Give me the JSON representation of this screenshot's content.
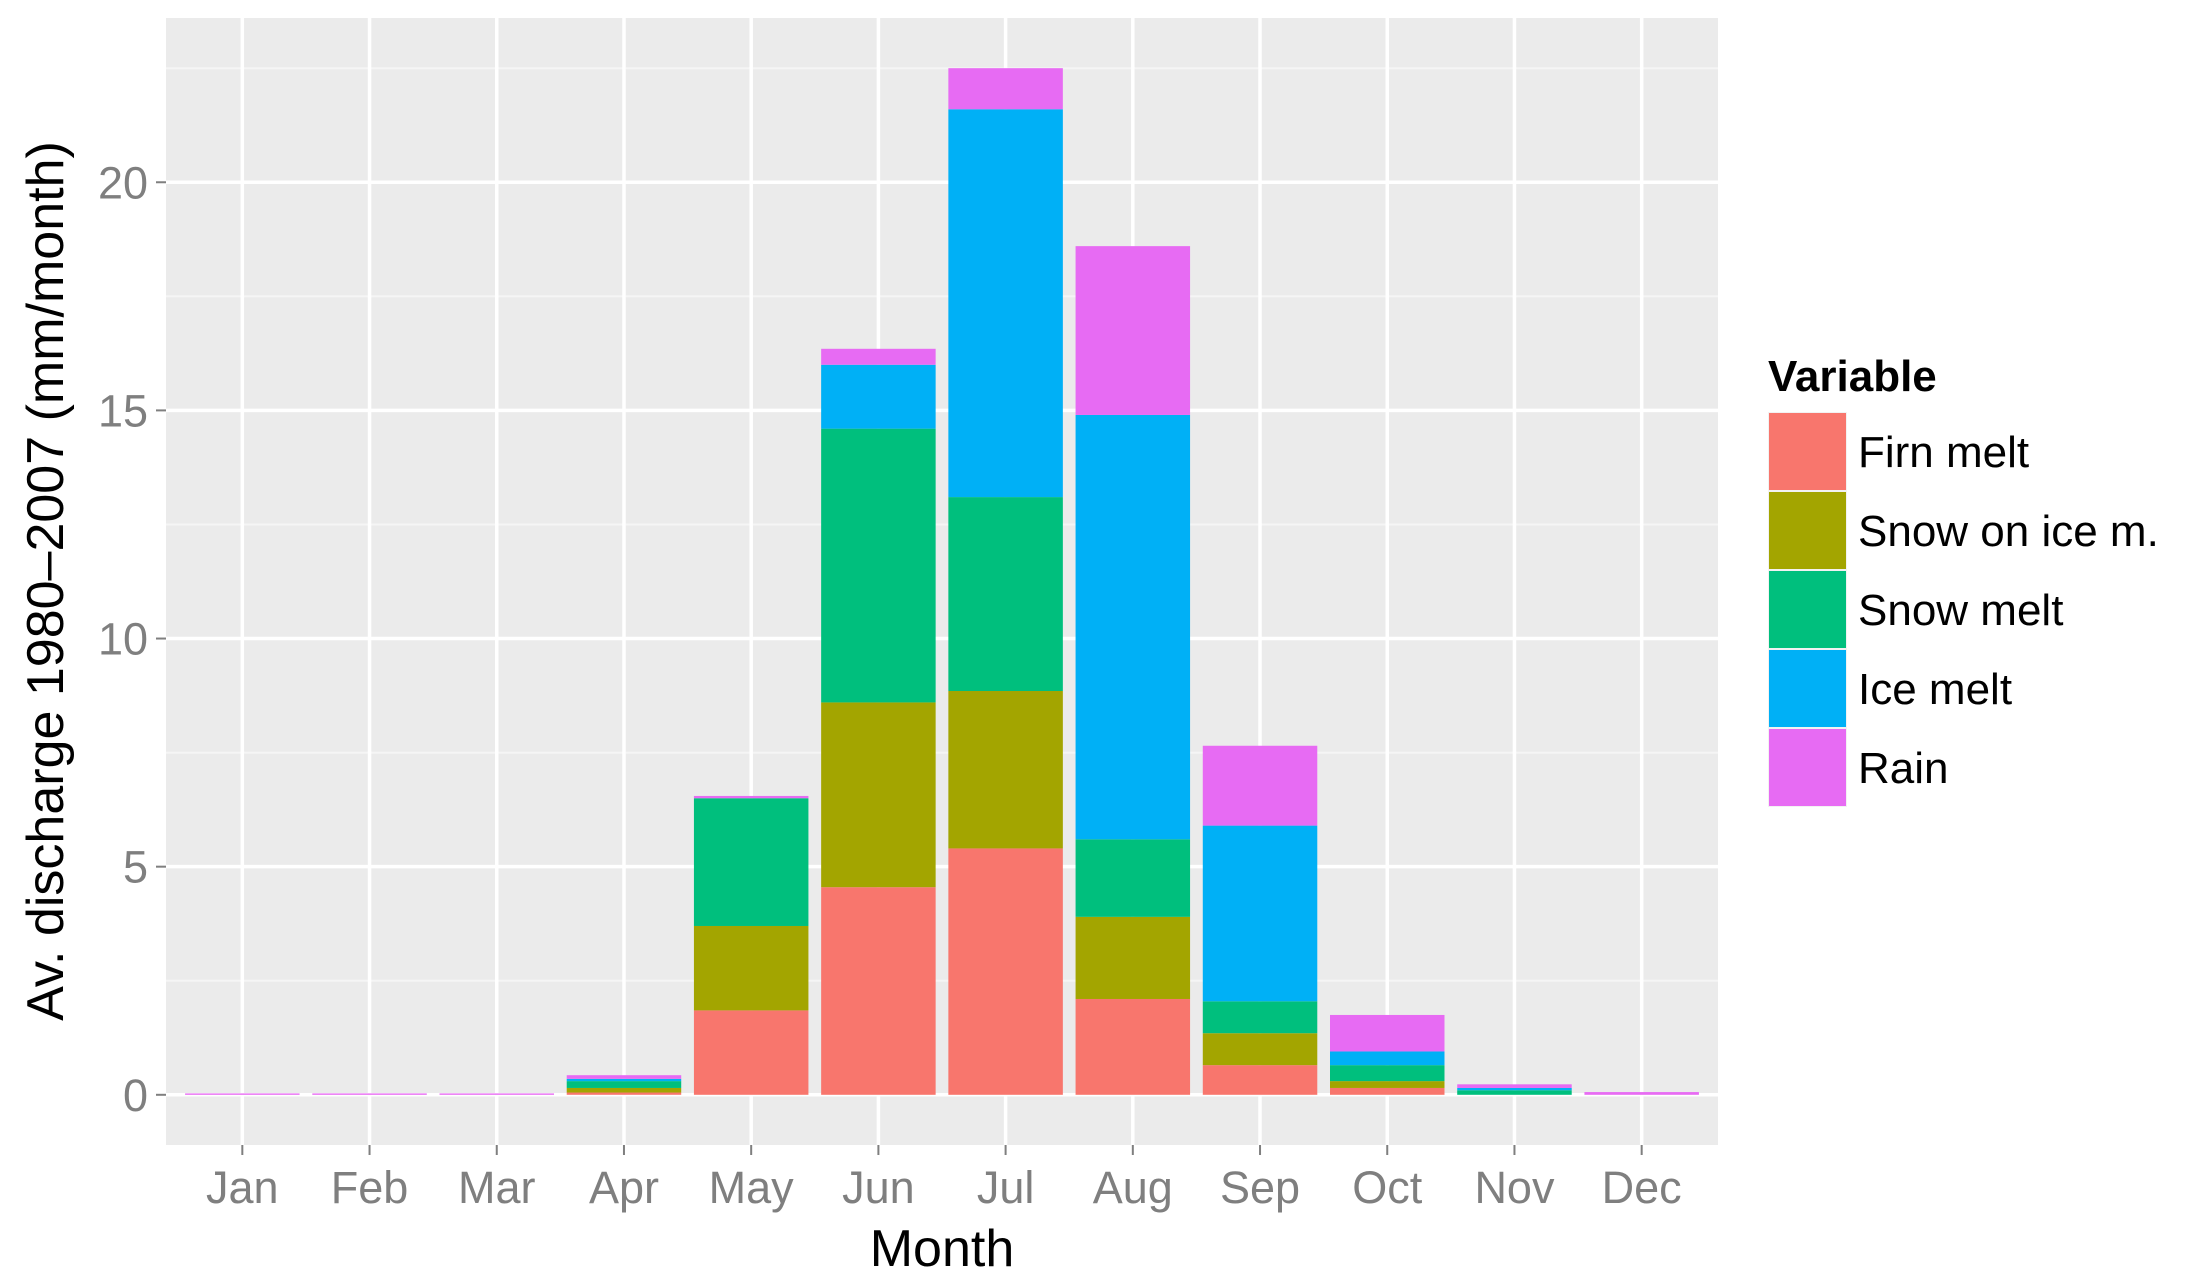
{
  "chart_data": {
    "type": "bar",
    "stacked": true,
    "xlabel": "Month",
    "ylabel": "Av. discharge 1980–2007 (mm/month)",
    "ylim": [
      -1.1,
      23.6
    ],
    "yticks": [
      0,
      5,
      10,
      15,
      20
    ],
    "grid": true,
    "legend": {
      "title": "Variable",
      "position": "right"
    },
    "categories": [
      "Jan",
      "Feb",
      "Mar",
      "Apr",
      "May",
      "Jun",
      "Jul",
      "Aug",
      "Sep",
      "Oct",
      "Nov",
      "Dec"
    ],
    "series": [
      {
        "name": "Firn melt",
        "color": "#F8766D",
        "values": [
          0,
          0,
          0,
          0.05,
          1.85,
          4.55,
          5.4,
          2.1,
          0.65,
          0.15,
          0,
          0
        ]
      },
      {
        "name": "Snow on ice m.",
        "color": "#A3A500",
        "values": [
          0,
          0,
          0,
          0.1,
          1.85,
          4.05,
          3.45,
          1.8,
          0.7,
          0.15,
          0,
          0
        ]
      },
      {
        "name": "Snow melt",
        "color": "#00BF7D",
        "values": [
          0,
          0,
          0,
          0.15,
          2.8,
          6.0,
          4.25,
          1.7,
          0.7,
          0.35,
          0.1,
          0
        ]
      },
      {
        "name": "Ice melt",
        "color": "#00B0F6",
        "values": [
          0,
          0,
          0,
          0.05,
          0,
          1.4,
          8.5,
          9.3,
          3.85,
          0.3,
          0.05,
          0
        ]
      },
      {
        "name": "Rain",
        "color": "#E76BF3",
        "values": [
          0.03,
          0.03,
          0.03,
          0.08,
          0.05,
          0.35,
          0.9,
          3.7,
          1.75,
          0.8,
          0.08,
          0.06
        ]
      }
    ]
  }
}
